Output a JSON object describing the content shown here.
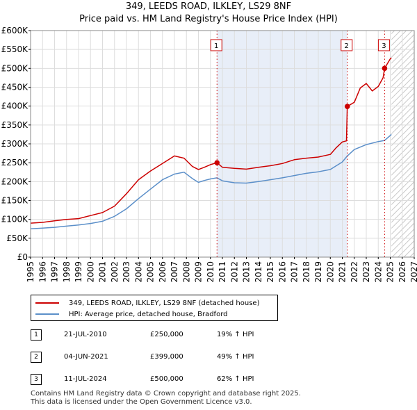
{
  "title_line1": "349, LEEDS ROAD, ILKLEY, LS29 8NF",
  "title_line2": "Price paid vs. HM Land Registry's House Price Index (HPI)",
  "legend": {
    "property_label": "349, LEEDS ROAD, ILKLEY, LS29 8NF (detached house)",
    "hpi_label": "HPI: Average price, detached house, Bradford"
  },
  "sales": [
    {
      "num": "1",
      "date": "21-JUL-2010",
      "price": "£250,000",
      "hpi": "19% ↑ HPI"
    },
    {
      "num": "2",
      "date": "04-JUN-2021",
      "price": "£399,000",
      "hpi": "49% ↑ HPI"
    },
    {
      "num": "3",
      "date": "11-JUL-2024",
      "price": "£500,000",
      "hpi": "62% ↑ HPI"
    }
  ],
  "footer_line1": "Contains HM Land Registry data © Crown copyright and database right 2025.",
  "footer_line2": "This data is licensed under the Open Government Licence v3.0.",
  "colors": {
    "property": "#cc0000",
    "hpi": "#5b8fc9",
    "shade": "#e8eef8",
    "grid": "#dddddd"
  },
  "chart_data": {
    "type": "line",
    "xlim": [
      1995,
      2027
    ],
    "ylim": [
      0,
      600000
    ],
    "x_ticks": [
      "1995",
      "1996",
      "1997",
      "1998",
      "1999",
      "2000",
      "2001",
      "2002",
      "2003",
      "2004",
      "2005",
      "2006",
      "2007",
      "2008",
      "2009",
      "2010",
      "2011",
      "2012",
      "2013",
      "2014",
      "2015",
      "2016",
      "2017",
      "2018",
      "2019",
      "2020",
      "2021",
      "2022",
      "2023",
      "2024",
      "2025",
      "2026",
      "2027"
    ],
    "y_ticks": [
      {
        "value": 0,
        "label": "£0"
      },
      {
        "value": 50000,
        "label": "£50K"
      },
      {
        "value": 100000,
        "label": "£100K"
      },
      {
        "value": 150000,
        "label": "£150K"
      },
      {
        "value": 200000,
        "label": "£200K"
      },
      {
        "value": 250000,
        "label": "£250K"
      },
      {
        "value": 300000,
        "label": "£300K"
      },
      {
        "value": 350000,
        "label": "£350K"
      },
      {
        "value": 400000,
        "label": "£400K"
      },
      {
        "value": 450000,
        "label": "£450K"
      },
      {
        "value": 500000,
        "label": "£500K"
      },
      {
        "value": 550000,
        "label": "£550K"
      },
      {
        "value": 600000,
        "label": "£600K"
      }
    ],
    "shaded_region": [
      2010.55,
      2021.42
    ],
    "future_hatch_from": 2025.1,
    "markers": [
      {
        "label": "1",
        "x": 2010.55,
        "y": 250000
      },
      {
        "label": "2",
        "x": 2021.42,
        "y": 399000
      },
      {
        "label": "3",
        "x": 2024.53,
        "y": 500000
      }
    ],
    "series": [
      {
        "name": "349, LEEDS ROAD, ILKLEY, LS29 8NF (detached house)",
        "color": "#cc0000",
        "x": [
          1995,
          1996,
          1997,
          1998,
          1999,
          2000,
          2001,
          2002,
          2003,
          2004,
          2005,
          2006,
          2007,
          2007.8,
          2008.5,
          2009,
          2009.5,
          2010,
          2010.55,
          2011,
          2012,
          2013,
          2014,
          2015,
          2016,
          2017,
          2018,
          2019,
          2020,
          2020.5,
          2021,
          2021.35,
          2021.42,
          2022,
          2022.5,
          2023,
          2023.5,
          2024,
          2024.4,
          2024.53,
          2025,
          2025.1
        ],
        "y": [
          90000,
          92000,
          96000,
          100000,
          102000,
          110000,
          118000,
          135000,
          168000,
          205000,
          228000,
          248000,
          268000,
          262000,
          240000,
          232000,
          238000,
          245000,
          250000,
          238000,
          235000,
          233000,
          238000,
          242000,
          248000,
          258000,
          262000,
          265000,
          272000,
          290000,
          305000,
          308000,
          399000,
          410000,
          448000,
          460000,
          440000,
          452000,
          475000,
          500000,
          525000,
          528000
        ]
      },
      {
        "name": "HPI: Average price, detached house, Bradford",
        "color": "#5b8fc9",
        "x": [
          1995,
          1996,
          1997,
          1998,
          1999,
          2000,
          2001,
          2002,
          2003,
          2004,
          2005,
          2006,
          2007,
          2007.8,
          2008.5,
          2009,
          2009.5,
          2010,
          2010.55,
          2011,
          2012,
          2013,
          2014,
          2015,
          2016,
          2017,
          2018,
          2019,
          2020,
          2021,
          2021.42,
          2022,
          2023,
          2024,
          2024.53,
          2025,
          2025.1
        ],
        "y": [
          75000,
          77000,
          79000,
          82000,
          85000,
          89000,
          95000,
          108000,
          128000,
          155000,
          180000,
          205000,
          220000,
          225000,
          208000,
          198000,
          203000,
          207000,
          210000,
          202000,
          197000,
          196000,
          200000,
          205000,
          210000,
          216000,
          222000,
          226000,
          232000,
          252000,
          268000,
          285000,
          298000,
          306000,
          309000,
          322000,
          325000
        ]
      }
    ]
  }
}
